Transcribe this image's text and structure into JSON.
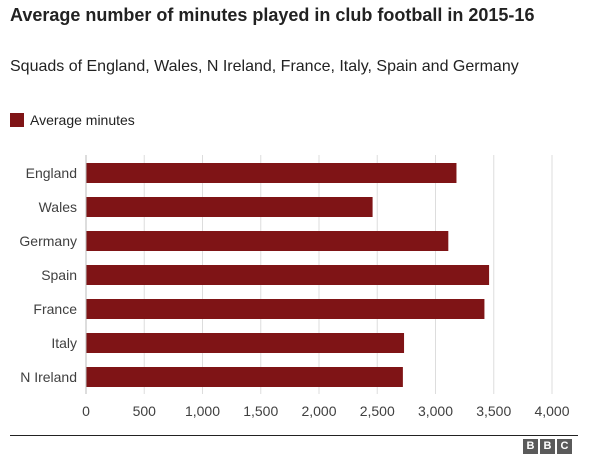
{
  "title": "Average number of minutes played in club football in 2015-16",
  "subtitle": "Squads of England, Wales, N Ireland, France, Italy, Spain and Germany",
  "legend": {
    "label": "Average minutes",
    "color": "#7f1416"
  },
  "logo_letters": [
    "B",
    "B",
    "C"
  ],
  "chart_data": {
    "type": "bar",
    "orientation": "horizontal",
    "categories": [
      "England",
      "Wales",
      "Germany",
      "Spain",
      "France",
      "Italy",
      "N Ireland"
    ],
    "series": [
      {
        "name": "Average minutes",
        "values": [
          3180,
          2460,
          3110,
          3460,
          3420,
          2730,
          2720
        ]
      }
    ],
    "xlim": [
      0,
      4000
    ],
    "xticks": [
      0,
      500,
      1000,
      1500,
      2000,
      2500,
      3000,
      3500,
      4000
    ],
    "xtick_labels": [
      "0",
      "500",
      "1,000",
      "1,500",
      "2,000",
      "2,500",
      "3,000",
      "3,500",
      "4,000"
    ],
    "grid": true,
    "bar_color": "#7f1416",
    "grid_color": "#dddddd",
    "legend_position": "top-left"
  }
}
